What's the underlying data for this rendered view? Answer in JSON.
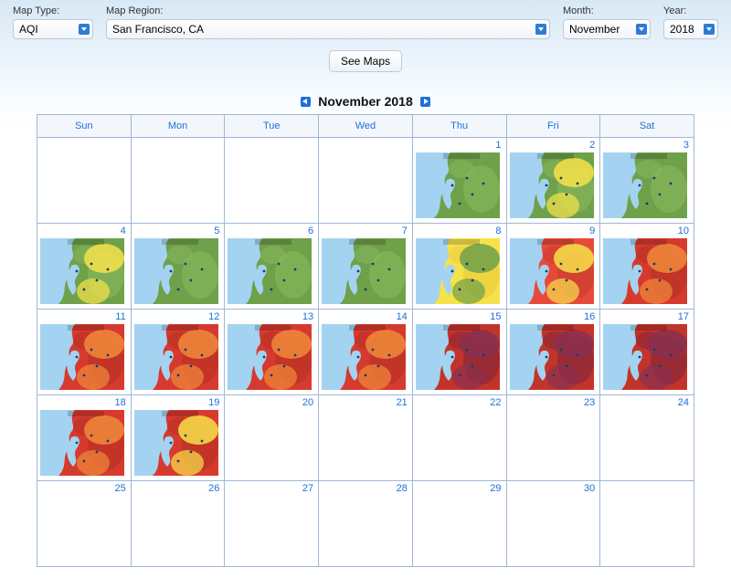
{
  "controls": {
    "map_type_label": "Map Type:",
    "map_type_value": "AQI",
    "map_region_label": "Map Region:",
    "map_region_value": "San Francisco, CA",
    "month_label": "Month:",
    "month_value": "November",
    "year_label": "Year:",
    "year_value": "2018",
    "see_maps_label": "See Maps"
  },
  "calendar": {
    "title": "November 2018",
    "weekdays": [
      "Sun",
      "Mon",
      "Tue",
      "Wed",
      "Thu",
      "Fri",
      "Sat"
    ],
    "first_weekday_index": 4,
    "days_in_month": 30,
    "num_weeks": 5,
    "thumbnails": {
      "1": {
        "palette": "good"
      },
      "2": {
        "palette": "good_y"
      },
      "3": {
        "palette": "good"
      },
      "4": {
        "palette": "good_y"
      },
      "5": {
        "palette": "good"
      },
      "6": {
        "palette": "good"
      },
      "7": {
        "palette": "good"
      },
      "8": {
        "palette": "mod"
      },
      "9": {
        "palette": "bad_y"
      },
      "10": {
        "palette": "vbad"
      },
      "11": {
        "palette": "vbad"
      },
      "12": {
        "palette": "vbad"
      },
      "13": {
        "palette": "vbad"
      },
      "14": {
        "palette": "vbad"
      },
      "15": {
        "palette": "vbad_p"
      },
      "16": {
        "palette": "vbad_p"
      },
      "17": {
        "palette": "vbad_p"
      },
      "18": {
        "palette": "vbad"
      },
      "19": {
        "palette": "vbad_y"
      }
    },
    "palettes": {
      "good": {
        "land_main": "#6fa04a",
        "land_shade": "#8cbb5f",
        "overlay": null
      },
      "good_y": {
        "land_main": "#6fa04a",
        "land_shade": "#8cbb5f",
        "overlay": "#f6e24a"
      },
      "mod": {
        "land_main": "#f6e24a",
        "land_shade": "#e8c83a",
        "overlay": "#6fa04a"
      },
      "bad_y": {
        "land_main": "#e64a3a",
        "land_shade": "#c23a2e",
        "overlay": "#f6e24a"
      },
      "vbad": {
        "land_main": "#d63a2e",
        "land_shade": "#b22e24",
        "overlay": "#f08a3a"
      },
      "vbad_y": {
        "land_main": "#d63a2e",
        "land_shade": "#b22e24",
        "overlay": "#f6e24a"
      },
      "vbad_p": {
        "land_main": "#c2342a",
        "land_shade": "#7a243a",
        "overlay": "#8a3050"
      }
    },
    "water_color": "#a3d3f0"
  }
}
